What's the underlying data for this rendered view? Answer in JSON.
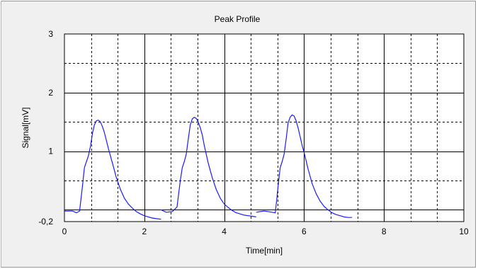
{
  "chart_data": {
    "type": "line",
    "title": "Peak Profile",
    "xlabel": "Time[min]",
    "ylabel": "Signal[mV]",
    "xlim": [
      0,
      10
    ],
    "ylim": [
      -0.2,
      3
    ],
    "x_ticks": [
      0,
      2,
      4,
      6,
      8,
      10
    ],
    "x_tick_labels": [
      "0",
      "2",
      "4",
      "6",
      "8",
      "10"
    ],
    "y_ticks": [
      -0.2,
      1,
      2,
      3
    ],
    "y_tick_labels": [
      "-0,2",
      "1",
      "2",
      "3"
    ],
    "grid": true,
    "series": [
      {
        "color": "#1a1aff",
        "x": [
          0,
          0.2,
          0.3,
          0.38,
          0.45,
          0.5,
          0.55,
          0.6,
          0.65,
          0.7,
          0.75,
          0.8,
          0.85,
          0.9,
          0.95,
          1.0,
          1.1,
          1.2,
          1.3,
          1.4,
          1.5,
          1.6,
          1.7,
          1.8,
          1.9,
          2.0,
          2.1,
          2.2,
          2.3,
          2.42,
          null,
          2.42,
          2.48,
          2.55,
          2.7,
          2.82,
          2.9,
          2.95,
          3.0,
          3.05,
          3.1,
          3.15,
          3.2,
          3.25,
          3.3,
          3.35,
          3.4,
          3.45,
          3.5,
          3.6,
          3.7,
          3.8,
          3.9,
          4.0,
          4.1,
          4.2,
          4.3,
          4.4,
          4.5,
          4.6,
          4.7,
          4.8,
          null,
          4.8,
          4.9,
          5.0,
          5.1,
          5.2,
          5.28,
          5.35,
          5.4,
          5.45,
          5.5,
          5.55,
          5.6,
          5.65,
          5.7,
          5.75,
          5.8,
          5.85,
          5.9,
          5.95,
          6.0,
          6.1,
          6.2,
          6.3,
          6.4,
          6.5,
          6.6,
          6.7,
          6.8,
          6.9,
          7.0,
          7.1,
          7.2
        ],
        "y": [
          -0.02,
          -0.02,
          -0.05,
          -0.02,
          0.4,
          0.72,
          0.82,
          0.92,
          1.08,
          1.3,
          1.45,
          1.52,
          1.53,
          1.5,
          1.42,
          1.32,
          1.05,
          0.8,
          0.55,
          0.35,
          0.2,
          0.1,
          0.03,
          -0.03,
          -0.07,
          -0.1,
          -0.12,
          -0.14,
          -0.15,
          -0.16,
          null,
          0.0,
          -0.02,
          -0.04,
          -0.03,
          0.05,
          0.5,
          0.72,
          0.82,
          0.95,
          1.2,
          1.45,
          1.55,
          1.58,
          1.56,
          1.5,
          1.4,
          1.28,
          1.1,
          0.8,
          0.55,
          0.35,
          0.2,
          0.1,
          0.04,
          -0.01,
          -0.05,
          -0.07,
          -0.09,
          -0.1,
          -0.11,
          -0.12,
          null,
          -0.04,
          -0.03,
          -0.02,
          -0.03,
          -0.04,
          -0.05,
          0.4,
          0.72,
          0.82,
          0.95,
          1.2,
          1.48,
          1.58,
          1.62,
          1.6,
          1.52,
          1.4,
          1.25,
          1.1,
          0.98,
          0.7,
          0.45,
          0.28,
          0.15,
          0.06,
          0.0,
          -0.05,
          -0.08,
          -0.1,
          -0.12,
          -0.13,
          -0.13
        ]
      }
    ]
  }
}
